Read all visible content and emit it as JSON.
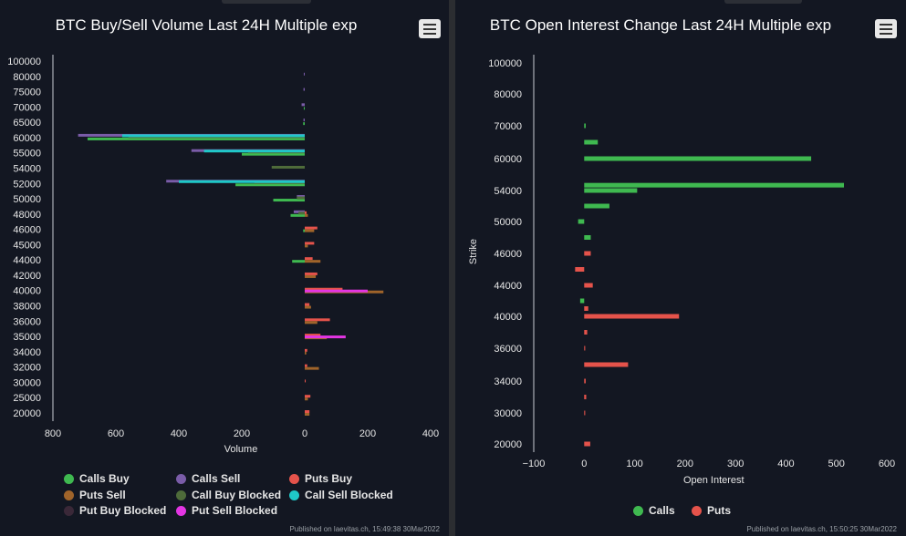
{
  "left": {
    "title": "BTC Buy/Sell Volume Last 24H Multiple exp",
    "credit": "Published on laevitas.ch, 15:49:38 30Mar2022",
    "menu_icon": "hamburger-menu-icon"
  },
  "right": {
    "title": "BTC Open Interest Change Last 24H Multiple exp",
    "credit": "Published on laevitas.ch, 15:50:25 30Mar2022",
    "menu_icon": "hamburger-menu-icon"
  },
  "chart_data": [
    {
      "type": "bar",
      "orientation": "horizontal",
      "title": "BTC Buy/Sell Volume Last 24H Multiple exp",
      "xlabel": "Volume",
      "ylabel": "",
      "xlim": [
        -800,
        400
      ],
      "x_ticks": [
        "800",
        "600",
        "400",
        "200",
        "0",
        "200",
        "400"
      ],
      "grid": false,
      "legend_position": "bottom",
      "categories": [
        100000,
        80000,
        75000,
        70000,
        65000,
        60000,
        55000,
        54000,
        52000,
        50000,
        48000,
        46000,
        45000,
        44000,
        42000,
        40000,
        38000,
        36000,
        35000,
        34000,
        32000,
        30000,
        25000,
        20000
      ],
      "series": [
        {
          "name": "Calls Buy",
          "color": "#3fb950",
          "values": [
            0,
            0,
            0,
            -3,
            -5,
            -690,
            -200,
            0,
            -220,
            -100,
            -45,
            -5,
            0,
            -40,
            0,
            0,
            0,
            0,
            0,
            0,
            0,
            0,
            0,
            0
          ]
        },
        {
          "name": "Calls Sell",
          "color": "#7a5ca8",
          "values": [
            0,
            -3,
            -4,
            -10,
            -4,
            -720,
            -360,
            0,
            -440,
            -25,
            -35,
            0,
            0,
            0,
            0,
            0,
            0,
            0,
            0,
            0,
            0,
            0,
            0,
            0
          ]
        },
        {
          "name": "Puts Buy",
          "color": "#e5534b",
          "values": [
            0,
            0,
            0,
            0,
            0,
            0,
            0,
            0,
            0,
            0,
            6,
            40,
            30,
            25,
            40,
            120,
            15,
            80,
            50,
            8,
            8,
            3,
            18,
            15
          ]
        },
        {
          "name": "Puts Sell",
          "color": "#a0642a",
          "values": [
            0,
            0,
            0,
            0,
            0,
            0,
            0,
            0,
            0,
            0,
            10,
            30,
            10,
            50,
            35,
            250,
            20,
            40,
            70,
            5,
            45,
            0,
            10,
            15
          ]
        },
        {
          "name": "Call Buy Blocked",
          "color": "#4e6b3a",
          "values": [
            0,
            0,
            0,
            0,
            0,
            -560,
            -180,
            -105,
            -160,
            -25,
            -20,
            0,
            0,
            0,
            0,
            0,
            0,
            0,
            0,
            0,
            0,
            0,
            0,
            0
          ]
        },
        {
          "name": "Call Sell Blocked",
          "color": "#1fc8c8",
          "values": [
            0,
            0,
            0,
            0,
            0,
            -580,
            -320,
            0,
            -400,
            0,
            0,
            0,
            0,
            0,
            0,
            0,
            0,
            0,
            0,
            0,
            0,
            0,
            0,
            0
          ]
        },
        {
          "name": "Put Buy Blocked",
          "color": "#3a2838",
          "values": [
            0,
            0,
            0,
            0,
            0,
            0,
            0,
            0,
            0,
            0,
            0,
            0,
            0,
            0,
            0,
            0,
            0,
            0,
            0,
            0,
            0,
            0,
            0,
            0
          ]
        },
        {
          "name": "Put Sell Blocked",
          "color": "#e335e3",
          "values": [
            0,
            0,
            0,
            0,
            0,
            0,
            0,
            0,
            0,
            0,
            0,
            0,
            0,
            0,
            0,
            200,
            0,
            0,
            130,
            0,
            0,
            0,
            0,
            0
          ]
        }
      ]
    },
    {
      "type": "bar",
      "orientation": "horizontal",
      "title": "BTC Open Interest Change Last 24H Multiple exp",
      "xlabel": "Open Interest",
      "ylabel": "Strike",
      "xlim": [
        -100,
        600
      ],
      "x_ticks": [
        "−100",
        "0",
        "100",
        "200",
        "300",
        "400",
        "500",
        "600"
      ],
      "grid": false,
      "legend_position": "bottom",
      "categories": [
        100000,
        80000,
        70000,
        60000,
        54000,
        50000,
        46000,
        44000,
        40000,
        36000,
        34000,
        30000,
        20000
      ],
      "rows": [
        {
          "strike": 100000,
          "calls": 0,
          "puts": 0
        },
        {
          "strike": 80000,
          "calls": 0,
          "puts": 0
        },
        {
          "strike": 70000,
          "calls": 3,
          "puts": 0
        },
        {
          "strike": 65000,
          "calls": 27,
          "puts": 0
        },
        {
          "strike": 60000,
          "calls": 450,
          "puts": 0
        },
        {
          "strike": 55000,
          "calls": 515,
          "puts": 0
        },
        {
          "strike": 54000,
          "calls": 105,
          "puts": 0
        },
        {
          "strike": 52000,
          "calls": 50,
          "puts": 0
        },
        {
          "strike": 50000,
          "calls": -12,
          "puts": 0
        },
        {
          "strike": 48000,
          "calls": 13,
          "puts": 0
        },
        {
          "strike": 46000,
          "calls": 0,
          "puts": 13
        },
        {
          "strike": 45000,
          "calls": 0,
          "puts": -18
        },
        {
          "strike": 44000,
          "calls": 0,
          "puts": 17
        },
        {
          "strike": 42000,
          "calls": -8,
          "puts": 0
        },
        {
          "strike": 41000,
          "calls": 0,
          "puts": 8
        },
        {
          "strike": 40000,
          "calls": 0,
          "puts": 188
        },
        {
          "strike": 38000,
          "calls": 0,
          "puts": 6
        },
        {
          "strike": 36000,
          "calls": 0,
          "puts": 2
        },
        {
          "strike": 35000,
          "calls": 0,
          "puts": 87
        },
        {
          "strike": 34000,
          "calls": 0,
          "puts": 3
        },
        {
          "strike": 32000,
          "calls": 0,
          "puts": 4
        },
        {
          "strike": 30000,
          "calls": 0,
          "puts": 2
        },
        {
          "strike": 20000,
          "calls": 0,
          "puts": 12
        }
      ],
      "series": [
        {
          "name": "Calls",
          "color": "#3fb950"
        },
        {
          "name": "Puts",
          "color": "#e5534b"
        }
      ]
    }
  ]
}
